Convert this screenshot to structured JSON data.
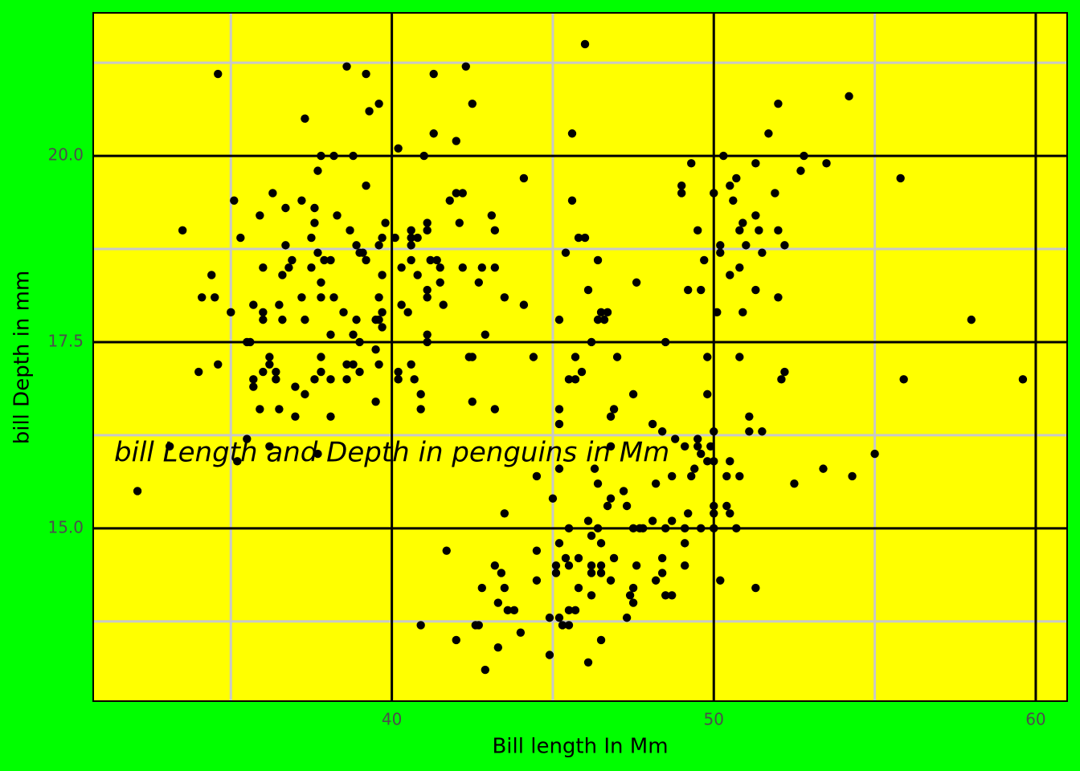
{
  "chart_data": {
    "type": "scatter",
    "x_label": "Bill length In Mm",
    "y_label": "bill Depth in mm",
    "annotation": {
      "text": "bill Length and Depth in penguins in Mm",
      "x": 40,
      "y": 16
    },
    "color": "#000000",
    "background": "#00ff00",
    "panel_color": "#ffff00",
    "grid": true,
    "xlim": [
      30.725,
      60.975
    ],
    "ylim": [
      12.68,
      21.92
    ],
    "xticks": [
      40,
      50,
      60
    ],
    "yticks": [
      {
        "value": 15,
        "label": "15.0"
      },
      17.5,
      {
        "value": 20,
        "label": "20.0"
      }
    ],
    "xminor": [
      35,
      45,
      55
    ],
    "yminor": [
      13.75,
      16.25,
      18.75,
      21.25
    ],
    "x": [
      32.1,
      33.1,
      33.5,
      34.0,
      34.1,
      34.4,
      34.5,
      34.6,
      34.6,
      35.0,
      35.1,
      35.2,
      35.3,
      35.5,
      35.6,
      35.5,
      35.7,
      35.7,
      35.7,
      35.9,
      35.9,
      36.0,
      36.0,
      36.0,
      36.0,
      36.2,
      36.2,
      36.2,
      36.3,
      36.4,
      36.4,
      36.5,
      36.5,
      36.6,
      36.6,
      36.7,
      36.7,
      36.8,
      36.9,
      37.0,
      37.0,
      37.2,
      37.2,
      37.3,
      37.3,
      37.3,
      37.5,
      37.5,
      37.6,
      37.6,
      37.6,
      37.7,
      37.7,
      37.7,
      37.8,
      37.8,
      37.8,
      37.8,
      37.8,
      37.9,
      38.1,
      38.1,
      38.1,
      38.1,
      38.2,
      38.2,
      38.3,
      38.5,
      38.6,
      38.6,
      38.6,
      38.7,
      38.8,
      38.8,
      38.8,
      38.9,
      38.9,
      39.0,
      39.0,
      39.0,
      39.1,
      39.2,
      39.2,
      39.2,
      39.3,
      39.5,
      39.5,
      39.5,
      39.6,
      39.6,
      39.6,
      39.6,
      39.6,
      39.7,
      39.7,
      39.7,
      39.7,
      39.8,
      40.1,
      40.2,
      40.2,
      40.2,
      40.3,
      40.3,
      40.5,
      40.6,
      40.6,
      40.6,
      40.6,
      40.6,
      40.7,
      40.8,
      40.8,
      40.9,
      40.9,
      40.9,
      41.0,
      41.1,
      41.1,
      41.1,
      41.1,
      41.1,
      41.1,
      41.2,
      41.3,
      41.3,
      41.4,
      41.5,
      41.5,
      41.6,
      41.7,
      41.8,
      42.0,
      42.0,
      42.0,
      42.1,
      42.2,
      42.2,
      42.3,
      42.4,
      42.5,
      42.5,
      42.5,
      42.6,
      42.7,
      42.7,
      42.8,
      42.8,
      42.9,
      42.9,
      43.1,
      43.2,
      43.2,
      43.2,
      43.2,
      43.3,
      43.3,
      43.4,
      43.5,
      43.5,
      43.5,
      43.6,
      43.8,
      44.0,
      44.1,
      44.1,
      44.4,
      44.5,
      44.5,
      44.5,
      44.9,
      44.9,
      45.0,
      45.1,
      45.1,
      45.2,
      45.2,
      45.2,
      45.2,
      45.2,
      45.2,
      45.3,
      45.4,
      45.4,
      45.5,
      45.5,
      45.5,
      45.5,
      45.5,
      45.6,
      45.6,
      45.7,
      45.7,
      45.7,
      45.8,
      45.8,
      45.8,
      45.9,
      46.0,
      46.0,
      46.1,
      46.1,
      46.1,
      46.2,
      46.2,
      46.2,
      46.2,
      46.2,
      46.3,
      46.4,
      46.4,
      46.4,
      46.4,
      46.5,
      46.5,
      46.5,
      46.5,
      46.5,
      46.6,
      46.7,
      46.7,
      46.8,
      46.8,
      46.8,
      46.8,
      46.9,
      46.9,
      47.0,
      47.2,
      47.3,
      47.3,
      47.4,
      47.5,
      47.5,
      47.5,
      47.5,
      47.6,
      47.6,
      47.7,
      47.8,
      48.1,
      48.1,
      48.2,
      48.2,
      48.4,
      48.4,
      48.4,
      48.5,
      48.5,
      48.5,
      48.7,
      48.7,
      48.7,
      48.8,
      49.0,
      49.0,
      49.1,
      49.1,
      49.1,
      49.1,
      49.2,
      49.2,
      49.3,
      49.3,
      49.4,
      49.5,
      49.5,
      49.5,
      49.6,
      49.6,
      49.6,
      49.7,
      49.8,
      49.8,
      49.8,
      49.9,
      50.0,
      50.0,
      50.0,
      50.0,
      50.0,
      50.0,
      50.1,
      50.2,
      50.2,
      50.2,
      50.3,
      50.4,
      50.4,
      50.5,
      50.5,
      50.5,
      50.5,
      50.6,
      50.7,
      50.7,
      50.8,
      50.8,
      50.8,
      50.8,
      50.9,
      50.9,
      51.0,
      51.1,
      51.1,
      51.3,
      51.3,
      51.3,
      51.3,
      51.4,
      51.5,
      51.5,
      51.7,
      51.9,
      52.0,
      52.0,
      52.0,
      52.1,
      52.2,
      52.2,
      52.5,
      52.7,
      52.8,
      53.4,
      53.5,
      54.2,
      54.3,
      55.0,
      55.8,
      55.9,
      58.0,
      59.6
    ],
    "values": [
      15.5,
      16.1,
      19.0,
      17.1,
      18.1,
      18.4,
      18.1,
      21.1,
      17.2,
      17.9,
      19.4,
      15.9,
      18.9,
      17.5,
      17.5,
      16.2,
      18.0,
      17.0,
      16.9,
      19.2,
      16.6,
      18.5,
      17.9,
      17.8,
      17.1,
      17.3,
      17.2,
      16.1,
      19.5,
      17.1,
      17.0,
      18.0,
      16.6,
      18.4,
      17.8,
      19.3,
      18.8,
      18.5,
      18.6,
      16.9,
      16.5,
      19.4,
      18.1,
      20.5,
      17.8,
      16.8,
      18.9,
      18.5,
      19.3,
      19.1,
      17.0,
      19.8,
      18.7,
      16.0,
      20.0,
      18.3,
      18.1,
      17.3,
      17.1,
      18.6,
      18.6,
      17.6,
      17.0,
      16.5,
      20.0,
      18.1,
      19.2,
      17.9,
      21.2,
      17.2,
      17.0,
      19.0,
      20.0,
      17.6,
      17.2,
      18.8,
      17.8,
      18.7,
      17.5,
      17.1,
      18.7,
      21.1,
      19.6,
      18.6,
      20.6,
      17.8,
      17.4,
      16.7,
      20.7,
      18.8,
      18.1,
      17.8,
      17.2,
      17.7,
      18.9,
      18.4,
      17.9,
      19.1,
      18.9,
      20.1,
      17.1,
      17.0,
      18.5,
      18.0,
      17.9,
      18.9,
      19.0,
      18.8,
      18.6,
      17.2,
      17.0,
      18.4,
      18.9,
      16.8,
      16.6,
      13.7,
      20.0,
      19.1,
      19.0,
      18.2,
      18.1,
      17.6,
      17.5,
      18.6,
      21.1,
      20.3,
      18.6,
      18.5,
      18.3,
      18.0,
      14.7,
      19.4,
      19.5,
      20.2,
      13.5,
      19.1,
      19.5,
      18.5,
      21.2,
      17.3,
      20.7,
      17.3,
      16.7,
      13.7,
      13.7,
      18.3,
      18.5,
      14.2,
      17.6,
      13.1,
      19.2,
      19.0,
      18.5,
      16.6,
      14.5,
      14.0,
      13.4,
      14.4,
      18.1,
      15.2,
      14.2,
      13.9,
      13.9,
      13.6,
      18.0,
      19.7,
      17.3,
      15.7,
      14.7,
      14.3,
      13.8,
      13.3,
      15.4,
      14.5,
      14.4,
      17.8,
      16.6,
      16.4,
      15.8,
      14.8,
      13.8,
      13.7,
      18.7,
      14.6,
      17.0,
      15.0,
      14.5,
      13.9,
      13.7,
      20.3,
      19.4,
      17.3,
      17.0,
      13.9,
      18.9,
      14.6,
      14.2,
      17.1,
      21.5,
      18.9,
      18.2,
      15.1,
      13.2,
      17.5,
      14.9,
      14.5,
      14.4,
      14.1,
      15.8,
      18.6,
      17.8,
      15.6,
      15.0,
      17.9,
      14.8,
      14.5,
      14.4,
      13.5,
      17.8,
      17.9,
      15.3,
      15.4,
      16.5,
      16.1,
      14.3,
      16.6,
      14.6,
      17.3,
      15.5,
      15.3,
      13.8,
      14.1,
      15.0,
      14.2,
      14.0,
      16.8,
      18.3,
      14.5,
      15.0,
      15.0,
      16.4,
      15.1,
      15.6,
      14.3,
      16.3,
      14.6,
      14.4,
      17.5,
      15.0,
      14.1,
      15.7,
      15.1,
      14.1,
      16.2,
      19.6,
      19.5,
      16.1,
      15.0,
      14.8,
      14.5,
      18.2,
      15.2,
      19.9,
      15.7,
      15.8,
      19.0,
      16.2,
      16.1,
      18.2,
      16.0,
      15.0,
      18.6,
      17.3,
      16.8,
      15.9,
      16.1,
      19.5,
      16.3,
      15.9,
      15.3,
      15.2,
      15.0,
      17.9,
      18.8,
      18.7,
      14.3,
      20.0,
      15.7,
      15.3,
      19.6,
      18.4,
      15.9,
      15.2,
      19.4,
      19.7,
      15.0,
      19.0,
      18.5,
      17.3,
      15.7,
      19.1,
      17.9,
      18.8,
      16.5,
      16.3,
      19.9,
      18.2,
      19.2,
      14.2,
      19.0,
      18.7,
      16.3,
      20.3,
      19.5,
      20.7,
      19.0,
      18.1,
      17.0,
      17.1,
      18.8,
      15.6,
      19.8,
      20.0,
      15.8,
      19.9,
      20.8,
      15.7,
      16.0,
      19.7,
      17.0,
      17.8,
      17.0
    ]
  }
}
